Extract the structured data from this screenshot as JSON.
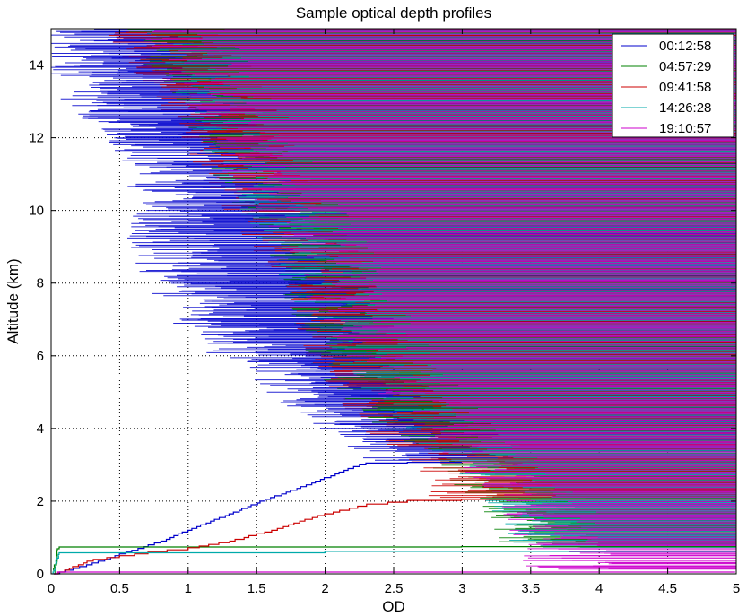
{
  "chart_data": {
    "type": "line",
    "title": "Sample optical depth profiles",
    "xlabel": "OD",
    "ylabel": "Altitude (km)",
    "xlim": [
      0,
      5
    ],
    "ylim": [
      0,
      15
    ],
    "xticks": [
      "0",
      "0.5",
      "1",
      "1.5",
      "2",
      "2.5",
      "3",
      "3.5",
      "4",
      "4.5",
      "5"
    ],
    "yticks": [
      "0",
      "2",
      "4",
      "6",
      "8",
      "10",
      "12",
      "14"
    ],
    "grid": true,
    "legend_position": "top-right",
    "series": [
      {
        "name": "00:12:58",
        "color": "#0000cc",
        "x": [
          0.02,
          0.3,
          0.55,
          0.8,
          1.0,
          1.2,
          1.4,
          1.6,
          1.9,
          2.1,
          2.2,
          2.3,
          2.6,
          3.0
        ],
        "y": [
          0.0,
          0.3,
          0.6,
          0.9,
          1.2,
          1.5,
          1.8,
          2.1,
          2.5,
          2.8,
          2.95,
          3.05,
          3.07,
          3.08
        ],
        "upper_edge": {
          "y": [
            3.1,
            4,
            5,
            6,
            7,
            8,
            9,
            10,
            11,
            12,
            13,
            14,
            15
          ],
          "x": [
            2.4,
            2.2,
            1.8,
            1.4,
            1.1,
            0.9,
            0.8,
            0.8,
            0.8,
            0.6,
            0.3,
            0.2,
            0.2
          ]
        }
      },
      {
        "name": "04:57:29",
        "color": "#008000",
        "x": [
          0.02,
          0.05,
          3.0,
          5.0
        ],
        "y": [
          0.0,
          0.74,
          0.75,
          0.75
        ],
        "upper_edge": {
          "y": [
            0.8,
            2,
            3,
            4,
            5,
            6,
            7,
            8,
            9,
            10,
            11,
            12,
            13,
            14,
            15
          ],
          "x": [
            3.5,
            3.3,
            3.0,
            2.6,
            2.3,
            2.1,
            2.0,
            1.9,
            1.8,
            1.6,
            1.4,
            1.3,
            1.1,
            0.9,
            0.8
          ]
        }
      },
      {
        "name": "09:41:58",
        "color": "#cc0000",
        "x": [
          0.02,
          0.3,
          0.7,
          1.0,
          1.3,
          1.5,
          1.7,
          1.9,
          2.1,
          2.3,
          2.6,
          3.0,
          3.5,
          5.0
        ],
        "y": [
          0.0,
          0.4,
          0.6,
          0.72,
          0.9,
          1.1,
          1.3,
          1.55,
          1.75,
          1.92,
          2.02,
          2.05,
          2.06,
          2.06
        ],
        "upper_edge": {
          "y": [
            2.1,
            3,
            4,
            5,
            6,
            7,
            8,
            9,
            10,
            11,
            12,
            13,
            14,
            15
          ],
          "x": [
            3.0,
            2.9,
            2.5,
            2.3,
            2.1,
            2.0,
            1.9,
            1.7,
            1.5,
            1.3,
            1.2,
            1.0,
            0.8,
            0.6
          ]
        }
      },
      {
        "name": "14:26:28",
        "color": "#00aaaa",
        "x": [
          0.02,
          0.05,
          2.0,
          5.0
        ],
        "y": [
          0.0,
          0.58,
          0.62,
          0.62
        ],
        "upper_edge": {
          "y": [
            0.7,
            2,
            3,
            4,
            5,
            6,
            7,
            8,
            9,
            10,
            11,
            12,
            13,
            14,
            15
          ],
          "x": [
            3.6,
            3.4,
            3.1,
            2.8,
            2.5,
            2.3,
            2.1,
            1.9,
            1.8,
            1.6,
            1.4,
            1.3,
            1.2,
            1.0,
            0.9
          ]
        }
      },
      {
        "name": "19:10:57",
        "color": "#cc00cc",
        "x": [
          0.02,
          0.05,
          5.0
        ],
        "y": [
          0.0,
          0.05,
          0.05
        ],
        "upper_edge": {
          "y": [
            0.1,
            2,
            3,
            4,
            5,
            6,
            7,
            8,
            9,
            10,
            11,
            12,
            13,
            14,
            15
          ],
          "x": [
            3.7,
            3.5,
            3.2,
            2.9,
            2.6,
            2.4,
            2.2,
            2.0,
            1.9,
            1.7,
            1.5,
            1.4,
            1.2,
            1.0,
            0.9
          ]
        }
      }
    ]
  }
}
